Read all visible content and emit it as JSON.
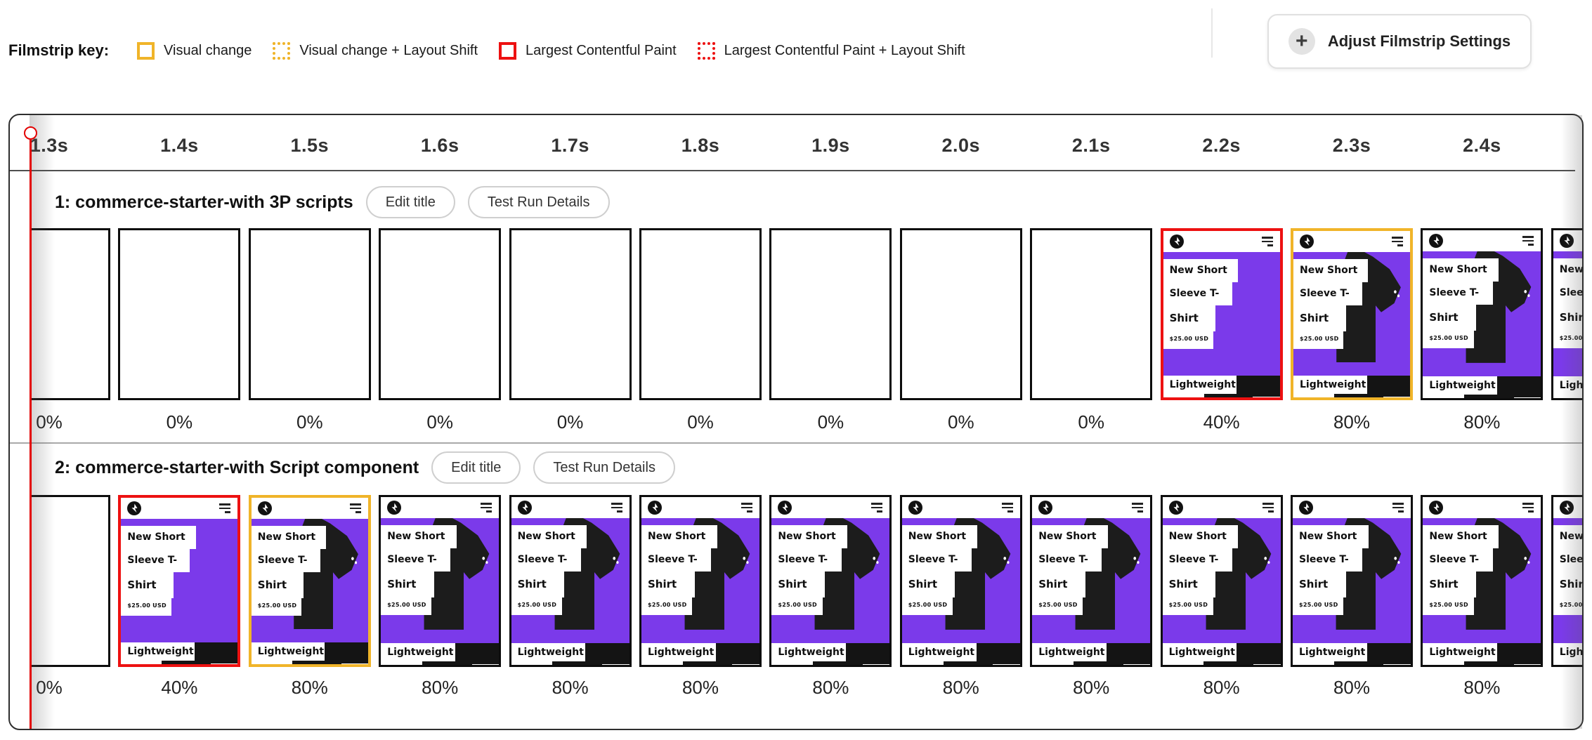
{
  "legend": {
    "title": "Filmstrip key:",
    "items": [
      {
        "label": "Visual change",
        "color": "yellow",
        "dotted": false
      },
      {
        "label": "Visual change + Layout Shift",
        "color": "yellow",
        "dotted": true
      },
      {
        "label": "Largest Contentful Paint",
        "color": "red",
        "dotted": false
      },
      {
        "label": "Largest Contentful Paint + Layout Shift",
        "color": "red",
        "dotted": true
      }
    ]
  },
  "settings_button": {
    "label": "Adjust Filmstrip Settings",
    "icon": "plus-icon"
  },
  "timeline": {
    "ticks": [
      "1.3s",
      "1.4s",
      "1.5s",
      "1.6s",
      "1.7s",
      "1.8s",
      "1.9s",
      "2.0s",
      "2.1s",
      "2.2s",
      "2.3s",
      "2.4s"
    ]
  },
  "runs": [
    {
      "title": "1: commerce-starter-with 3P scripts",
      "edit_button": "Edit title",
      "details_button": "Test Run Details",
      "frames": [
        {
          "progress": "0%",
          "content": "blank",
          "marker": "none",
          "partial": "left"
        },
        {
          "progress": "0%",
          "content": "blank",
          "marker": "none"
        },
        {
          "progress": "0%",
          "content": "blank",
          "marker": "none"
        },
        {
          "progress": "0%",
          "content": "blank",
          "marker": "none"
        },
        {
          "progress": "0%",
          "content": "blank",
          "marker": "none"
        },
        {
          "progress": "0%",
          "content": "blank",
          "marker": "none"
        },
        {
          "progress": "0%",
          "content": "blank",
          "marker": "none"
        },
        {
          "progress": "0%",
          "content": "blank",
          "marker": "none"
        },
        {
          "progress": "0%",
          "content": "blank",
          "marker": "none"
        },
        {
          "progress": "40%",
          "content": "loading",
          "marker": "lcp"
        },
        {
          "progress": "80%",
          "content": "loaded",
          "marker": "visual-change"
        },
        {
          "progress": "80%",
          "content": "loaded",
          "marker": "none"
        },
        {
          "progress": "",
          "content": "loaded",
          "marker": "none",
          "partial": "right"
        }
      ]
    },
    {
      "title": "2: commerce-starter-with Script component",
      "edit_button": "Edit title",
      "details_button": "Test Run Details",
      "frames": [
        {
          "progress": "0%",
          "content": "blank",
          "marker": "none",
          "partial": "left"
        },
        {
          "progress": "40%",
          "content": "loading",
          "marker": "lcp"
        },
        {
          "progress": "80%",
          "content": "loaded",
          "marker": "visual-change"
        },
        {
          "progress": "80%",
          "content": "loaded",
          "marker": "none"
        },
        {
          "progress": "80%",
          "content": "loaded",
          "marker": "none"
        },
        {
          "progress": "80%",
          "content": "loaded",
          "marker": "none"
        },
        {
          "progress": "80%",
          "content": "loaded",
          "marker": "none"
        },
        {
          "progress": "80%",
          "content": "loaded",
          "marker": "none"
        },
        {
          "progress": "80%",
          "content": "loaded",
          "marker": "none"
        },
        {
          "progress": "80%",
          "content": "loaded",
          "marker": "none"
        },
        {
          "progress": "80%",
          "content": "loaded",
          "marker": "none"
        },
        {
          "progress": "80%",
          "content": "loaded",
          "marker": "none"
        },
        {
          "progress": "",
          "content": "loaded",
          "marker": "none",
          "partial": "right"
        }
      ]
    }
  ],
  "frame_screenshot": {
    "heading_lines": [
      "New Short",
      "Sleeve T-",
      "Shirt"
    ],
    "price": "$25.00 USD",
    "badge": "Lightweight"
  },
  "colors": {
    "visual_change": "#F0B429",
    "largest_contentful_paint": "#ED1111",
    "cursor": "#E30000",
    "screenshot_background": "#7B3AEA"
  }
}
